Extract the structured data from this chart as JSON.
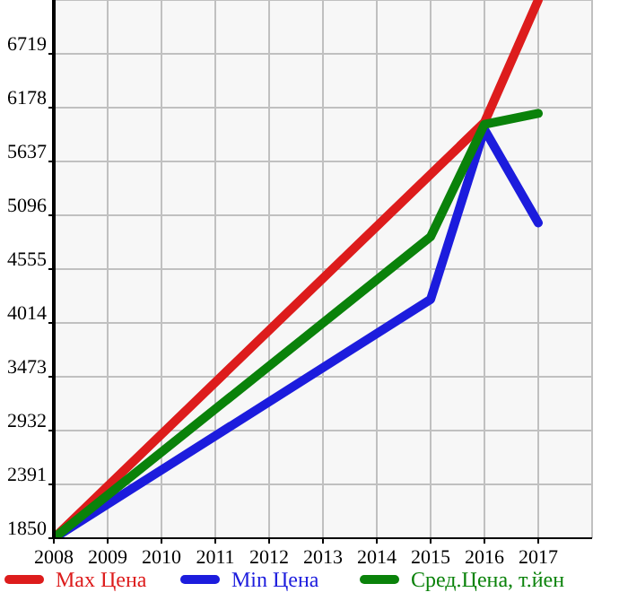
{
  "chart_data": {
    "type": "line",
    "x": [
      2008,
      2009,
      2010,
      2011,
      2012,
      2013,
      2014,
      2015,
      2016,
      2017
    ],
    "series": [
      {
        "name": "Max Цена",
        "color": "#dd1c1c",
        "values": [
          1850,
          null,
          null,
          null,
          null,
          null,
          null,
          null,
          6030,
          7260
        ]
      },
      {
        "name": "Min Цена",
        "color": "#1c1cdd",
        "values": [
          1850,
          null,
          null,
          null,
          null,
          null,
          null,
          4250,
          5960,
          5020
        ]
      },
      {
        "name": "Сред.Цена, т.йен",
        "color": "#0a820a",
        "values": [
          1850,
          null,
          null,
          null,
          null,
          null,
          null,
          4880,
          6010,
          6120
        ]
      }
    ],
    "xlim": [
      2008,
      2018
    ],
    "xticks": [
      2008,
      2009,
      2010,
      2011,
      2012,
      2013,
      2014,
      2015,
      2016,
      2017
    ],
    "ylim": [
      1850,
      7260
    ],
    "yticks": [
      1850,
      2391,
      2932,
      3473,
      4014,
      4555,
      5096,
      5637,
      6178,
      6719
    ],
    "grid": true,
    "legend": "bottom",
    "marker": "none",
    "line_style": "solid"
  }
}
